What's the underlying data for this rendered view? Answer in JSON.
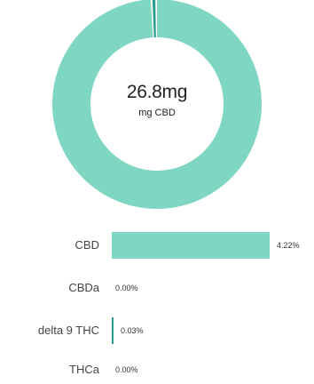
{
  "chart_data": [
    {
      "type": "pie",
      "center_value": "26.8mg",
      "center_label": "mg CBD",
      "slices": [
        {
          "label": "CBD",
          "value": 4.22,
          "color": "#7fd6c2"
        },
        {
          "label": "delta 9 THC",
          "value": 0.03,
          "color": "#2a9d8f"
        }
      ]
    },
    {
      "type": "bar",
      "orientation": "horizontal",
      "categories": [
        "CBD",
        "CBDa",
        "delta 9 THC",
        "THCa"
      ],
      "values": [
        4.22,
        0.0,
        0.03,
        0.0
      ],
      "value_labels": [
        "4.22%",
        "0.00%",
        "0.03%",
        "0.00%"
      ],
      "colors": [
        "#7fd6c2",
        "#7fd6c2",
        "#2a9d8f",
        "#7fd6c2"
      ]
    }
  ]
}
